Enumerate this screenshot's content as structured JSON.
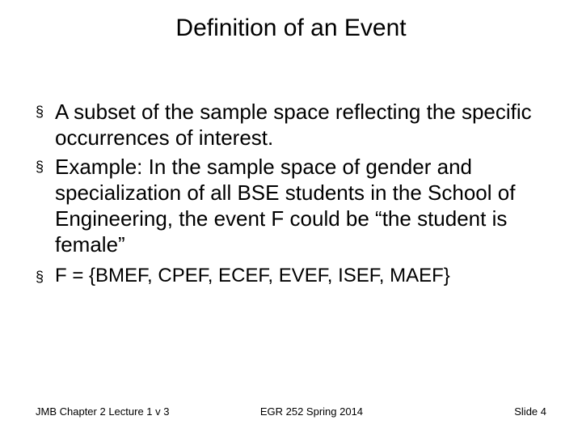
{
  "title": "Definition of an Event",
  "bullets": {
    "b1": "A subset of the sample space reflecting the specific occurrences of interest.",
    "b2": "Example: In the sample space of gender and specialization of all BSE students in the School of Engineering, the event F could be “the student is female”",
    "b3": "F =  {BMEF, CPEF, ECEF, EVEF, ISEF, MAEF}"
  },
  "bullet_marker": "§",
  "footer": {
    "left": "JMB Chapter 2 Lecture 1 v 3",
    "center": "EGR 252 Spring 2014",
    "right": "Slide 4"
  },
  "style": {
    "background_color": "#ffffff",
    "text_color": "#000000",
    "title_fontsize": 30,
    "body_fontsize_large": 26,
    "body_fontsize_medium": 24,
    "footer_fontsize": 13,
    "font_family": "Arial"
  }
}
